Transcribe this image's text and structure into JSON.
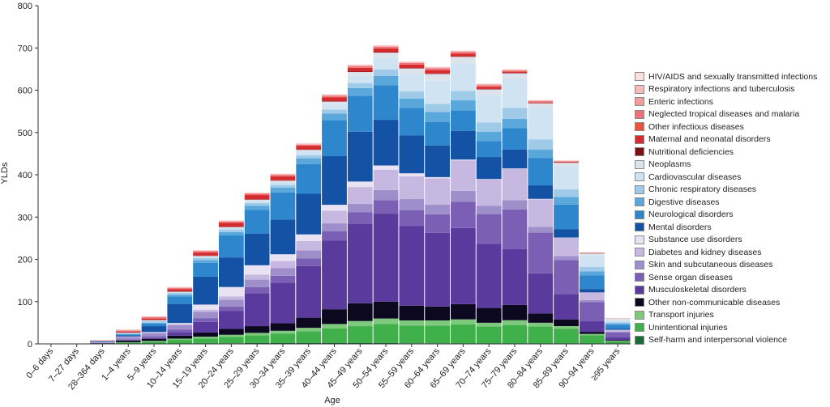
{
  "chart_data": {
    "type": "bar",
    "stacked": true,
    "xlabel": "Age",
    "ylabel": "YLDs",
    "ylim": [
      0,
      800
    ],
    "yticks": [
      0,
      100,
      200,
      300,
      400,
      500,
      600,
      700,
      800
    ],
    "grid": false,
    "legend_position": "right",
    "categories": [
      "0–6 days",
      "7–27 days",
      "28–364 days",
      "1–4 years",
      "5–9 years",
      "10–14 years",
      "15–19 years",
      "20–24 years",
      "25–29 years",
      "30–34 years",
      "35–39 years",
      "40–44 years",
      "45–49 years",
      "50–54 years",
      "55–59 years",
      "60–64 years",
      "65–69 years",
      "70–74 years",
      "75–79 years",
      "80–84 years",
      "85–89 years",
      "90–94 years",
      "≥95 years"
    ],
    "series": [
      {
        "name": "Self-harm and interpersonal violence",
        "color": "#1b6a3a",
        "values": [
          0,
          0,
          0,
          0,
          0,
          0.5,
          1,
          1.5,
          2,
          2,
          2,
          2,
          2,
          2,
          1.5,
          1.5,
          1,
          1,
          1,
          1,
          1,
          0.5,
          0.3
        ]
      },
      {
        "name": "Unintentional injuries",
        "color": "#3fb04a",
        "values": [
          0,
          0,
          0.5,
          3,
          5,
          9,
          12,
          15,
          18,
          22,
          28,
          35,
          40,
          45,
          42,
          42,
          45,
          40,
          43,
          40,
          35,
          20,
          6
        ]
      },
      {
        "name": "Transport injuries",
        "color": "#7fc97f",
        "values": [
          0,
          0,
          0,
          1,
          2,
          3,
          4,
          5,
          6,
          7,
          8,
          10,
          12,
          13,
          12,
          12,
          12,
          9,
          12,
          9,
          6,
          3,
          1
        ]
      },
      {
        "name": "Other non-communicable diseases",
        "color": "#0c0820",
        "values": [
          0,
          0,
          1,
          4,
          5,
          7,
          10,
          14,
          16,
          18,
          24,
          35,
          42,
          40,
          35,
          33,
          36,
          35,
          36,
          22,
          16,
          5,
          2
        ]
      },
      {
        "name": "Musculoskeletal disorders",
        "color": "#5b3a9e",
        "values": [
          0,
          0,
          0.5,
          1,
          2,
          8,
          25,
          42,
          78,
          96,
          122,
          162,
          188,
          208,
          188,
          174,
          180,
          152,
          132,
          95,
          60,
          25,
          6
        ]
      },
      {
        "name": "Sense organ diseases",
        "color": "#7a5fb5",
        "values": [
          0,
          0,
          0.5,
          2,
          4,
          6,
          9,
          11,
          14,
          16,
          18,
          22,
          27,
          32,
          38,
          44,
          62,
          70,
          94,
          96,
          80,
          45,
          12
        ]
      },
      {
        "name": "Skin and subcutaneous diseases",
        "color": "#9e8fca",
        "values": [
          0,
          0,
          1,
          5,
          7,
          11,
          15,
          16,
          18,
          18,
          19,
          19,
          20,
          24,
          26,
          23,
          26,
          20,
          22,
          14,
          10,
          5,
          2
        ]
      },
      {
        "name": "Diabetes and kidney diseases",
        "color": "#c6b8e0",
        "values": [
          0,
          0,
          0.5,
          1.5,
          2,
          3,
          5,
          8,
          12,
          17,
          22,
          30,
          40,
          48,
          54,
          62,
          72,
          62,
          74,
          65,
          43,
          18,
          4
        ]
      },
      {
        "name": "Substance use disorders",
        "color": "#e8e2f3",
        "values": [
          0,
          0,
          0,
          0,
          1,
          2,
          12,
          22,
          22,
          16,
          16,
          14,
          13,
          10,
          7,
          3,
          2,
          1,
          1,
          1,
          0.5,
          0.3,
          0.1
        ]
      },
      {
        "name": "Mental disorders",
        "color": "#1452a6",
        "values": [
          0,
          0,
          1,
          3,
          14,
          45,
          66,
          70,
          75,
          82,
          96,
          115,
          118,
          108,
          90,
          75,
          68,
          52,
          45,
          32,
          20,
          8,
          2
        ]
      },
      {
        "name": "Neurological disorders",
        "color": "#2e86cc",
        "values": [
          0,
          0,
          1,
          2,
          6,
          18,
          33,
          52,
          56,
          64,
          70,
          85,
          85,
          82,
          65,
          55,
          48,
          38,
          50,
          65,
          58,
          32,
          10
        ]
      },
      {
        "name": "Digestive diseases",
        "color": "#5aa7dc",
        "values": [
          0,
          0,
          0.5,
          1,
          2,
          4,
          6,
          8,
          10,
          12,
          14,
          16,
          18,
          22,
          22,
          24,
          24,
          22,
          22,
          20,
          18,
          10,
          3
        ]
      },
      {
        "name": "Chronic respiratory diseases",
        "color": "#9fcbe9",
        "values": [
          0,
          0,
          0.5,
          2,
          4,
          4,
          5,
          6,
          6,
          6,
          7,
          9,
          12,
          15,
          17,
          19,
          22,
          22,
          26,
          24,
          18,
          10,
          3
        ]
      },
      {
        "name": "Cardiovascular diseases",
        "color": "#cfe3f3",
        "values": [
          0,
          0,
          0,
          0.5,
          1,
          2,
          3,
          4,
          5,
          7,
          9,
          13,
          18,
          28,
          40,
          55,
          65,
          65,
          70,
          75,
          55,
          28,
          7
        ]
      },
      {
        "name": "Neoplasms",
        "color": "#dde3ea",
        "values": [
          0,
          0,
          0,
          0.5,
          1,
          1,
          2,
          2,
          3,
          3,
          4,
          6,
          8,
          12,
          14,
          16,
          16,
          13,
          12,
          10,
          8,
          4,
          1
        ]
      },
      {
        "name": "Nutritional deficiencies",
        "color": "#7a1018",
        "values": [
          0,
          0,
          0.5,
          1,
          1,
          1,
          1,
          1,
          1,
          1,
          1,
          1,
          1,
          1,
          1,
          1,
          1,
          1,
          1,
          1,
          1,
          0.5,
          0.2
        ]
      },
      {
        "name": "Maternal and neonatal disorders",
        "color": "#d52a2e",
        "values": [
          0.2,
          0.2,
          0.5,
          2,
          3,
          5,
          7,
          9,
          10,
          9,
          8,
          9,
          9,
          9,
          8,
          8,
          6,
          5,
          2,
          1,
          1,
          0.5,
          0.2
        ]
      },
      {
        "name": "Other infectious diseases",
        "color": "#e8553a",
        "values": [
          0,
          0,
          0,
          0.5,
          1,
          1,
          1,
          1,
          1,
          1,
          1,
          1,
          1,
          1,
          1,
          1,
          1,
          1,
          1,
          1,
          0.5,
          0.3,
          0.1
        ]
      },
      {
        "name": "Neglected tropical diseases and malaria",
        "color": "#ef6f7a",
        "values": [
          0,
          0,
          0,
          1,
          2,
          2,
          2,
          2,
          2,
          2,
          2,
          3,
          3,
          3,
          3,
          3,
          3,
          3,
          2,
          2,
          1,
          0.5,
          0.2
        ]
      },
      {
        "name": "Enteric infections",
        "color": "#f39c9c",
        "values": [
          0,
          0,
          0.5,
          2,
          1,
          1,
          1,
          1,
          1,
          1,
          1,
          1,
          1,
          1,
          1,
          1,
          1,
          1,
          1,
          1,
          0.5,
          0.5,
          0.2
        ]
      },
      {
        "name": "Respiratory infections and tuberculosis",
        "color": "#f6bcbc",
        "values": [
          0,
          0,
          0.5,
          1,
          1,
          1,
          1,
          1,
          1,
          2,
          2,
          2,
          2,
          2,
          2,
          2,
          2,
          2,
          2,
          1,
          1,
          0.5,
          0.2
        ]
      },
      {
        "name": "HIV/AIDS and sexually transmitted infections",
        "color": "#fbdede",
        "values": [
          0,
          0,
          0,
          0.5,
          0.5,
          0.5,
          1,
          1,
          1,
          1,
          1,
          1,
          1,
          1,
          1,
          1,
          1,
          1,
          1,
          1,
          0.5,
          0.3,
          0.1
        ]
      }
    ]
  }
}
